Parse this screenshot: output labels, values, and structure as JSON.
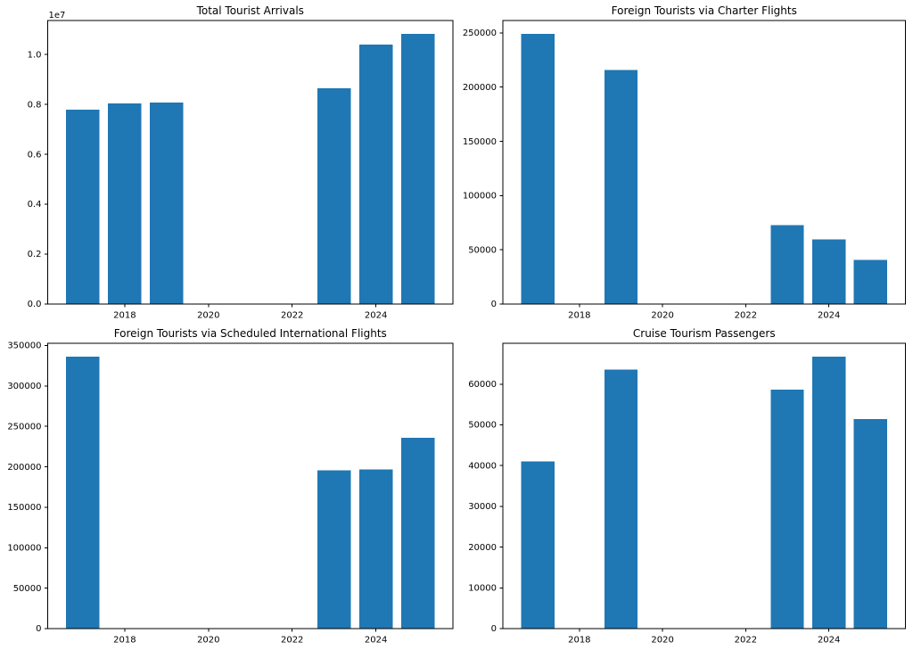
{
  "figure": {
    "background_color": "#ffffff",
    "bar_color": "#1f77b4",
    "axis_color": "#000000",
    "text_color": "#000000"
  },
  "chart_data": [
    {
      "id": "total-tourist-arrivals",
      "type": "bar",
      "title": "Total Tourist Arrivals",
      "xlabel": "",
      "ylabel": "",
      "categories": [
        2017,
        2018,
        2019,
        2023,
        2024,
        2025
      ],
      "values": [
        7780000,
        8030000,
        8070000,
        8640000,
        10400000,
        10820000
      ],
      "bar_width": 0.8,
      "xlim": [
        2016.16,
        2025.84
      ],
      "ylim": [
        0,
        11361000
      ],
      "grid": false,
      "legend": null,
      "offset_label": "1e7",
      "xticks": [
        {
          "value": 2018,
          "label": "2018"
        },
        {
          "value": 2020,
          "label": "2020"
        },
        {
          "value": 2022,
          "label": "2022"
        },
        {
          "value": 2024,
          "label": "2024"
        }
      ],
      "yticks": [
        {
          "value": 0,
          "label": "0.0"
        },
        {
          "value": 2000000,
          "label": "0.2"
        },
        {
          "value": 4000000,
          "label": "0.4"
        },
        {
          "value": 6000000,
          "label": "0.6"
        },
        {
          "value": 8000000,
          "label": "0.8"
        },
        {
          "value": 10000000,
          "label": "1.0"
        }
      ]
    },
    {
      "id": "charter-flights",
      "type": "bar",
      "title": "Foreign Tourists via Charter Flights",
      "xlabel": "",
      "ylabel": "",
      "categories": [
        2017,
        2019,
        2023,
        2024,
        2025
      ],
      "values": [
        249000,
        216000,
        72700,
        59500,
        40500
      ],
      "bar_width": 0.8,
      "xlim": [
        2016.16,
        2025.84
      ],
      "ylim": [
        0,
        261450
      ],
      "grid": false,
      "legend": null,
      "offset_label": null,
      "xticks": [
        {
          "value": 2018,
          "label": "2018"
        },
        {
          "value": 2020,
          "label": "2020"
        },
        {
          "value": 2022,
          "label": "2022"
        },
        {
          "value": 2024,
          "label": "2024"
        }
      ],
      "yticks": [
        {
          "value": 0,
          "label": "0"
        },
        {
          "value": 50000,
          "label": "50000"
        },
        {
          "value": 100000,
          "label": "100000"
        },
        {
          "value": 150000,
          "label": "150000"
        },
        {
          "value": 200000,
          "label": "200000"
        },
        {
          "value": 250000,
          "label": "250000"
        }
      ]
    },
    {
      "id": "scheduled-international-flights",
      "type": "bar",
      "title": "Foreign Tourists via Scheduled International Flights",
      "xlabel": "",
      "ylabel": "",
      "categories": [
        2017,
        2023,
        2024,
        2025
      ],
      "values": [
        336000,
        195500,
        196600,
        236000
      ],
      "bar_width": 0.8,
      "xlim": [
        2016.16,
        2025.84
      ],
      "ylim": [
        0,
        352800
      ],
      "grid": false,
      "legend": null,
      "offset_label": null,
      "xticks": [
        {
          "value": 2018,
          "label": "2018"
        },
        {
          "value": 2020,
          "label": "2020"
        },
        {
          "value": 2022,
          "label": "2022"
        },
        {
          "value": 2024,
          "label": "2024"
        }
      ],
      "yticks": [
        {
          "value": 0,
          "label": "0"
        },
        {
          "value": 50000,
          "label": "50000"
        },
        {
          "value": 100000,
          "label": "100000"
        },
        {
          "value": 150000,
          "label": "150000"
        },
        {
          "value": 200000,
          "label": "200000"
        },
        {
          "value": 250000,
          "label": "250000"
        },
        {
          "value": 300000,
          "label": "300000"
        },
        {
          "value": 350000,
          "label": "350000"
        }
      ]
    },
    {
      "id": "cruise-passengers",
      "type": "bar",
      "title": "Cruise Tourism Passengers",
      "xlabel": "",
      "ylabel": "",
      "categories": [
        2017,
        2019,
        2023,
        2024,
        2025
      ],
      "values": [
        41000,
        63600,
        58700,
        66700,
        51400
      ],
      "bar_width": 0.8,
      "xlim": [
        2016.16,
        2025.84
      ],
      "ylim": [
        0,
        70035
      ],
      "grid": false,
      "legend": null,
      "offset_label": null,
      "xticks": [
        {
          "value": 2018,
          "label": "2018"
        },
        {
          "value": 2020,
          "label": "2020"
        },
        {
          "value": 2022,
          "label": "2022"
        },
        {
          "value": 2024,
          "label": "2024"
        }
      ],
      "yticks": [
        {
          "value": 0,
          "label": "0"
        },
        {
          "value": 10000,
          "label": "10000"
        },
        {
          "value": 20000,
          "label": "20000"
        },
        {
          "value": 30000,
          "label": "30000"
        },
        {
          "value": 40000,
          "label": "40000"
        },
        {
          "value": 50000,
          "label": "50000"
        },
        {
          "value": 60000,
          "label": "60000"
        }
      ]
    }
  ]
}
